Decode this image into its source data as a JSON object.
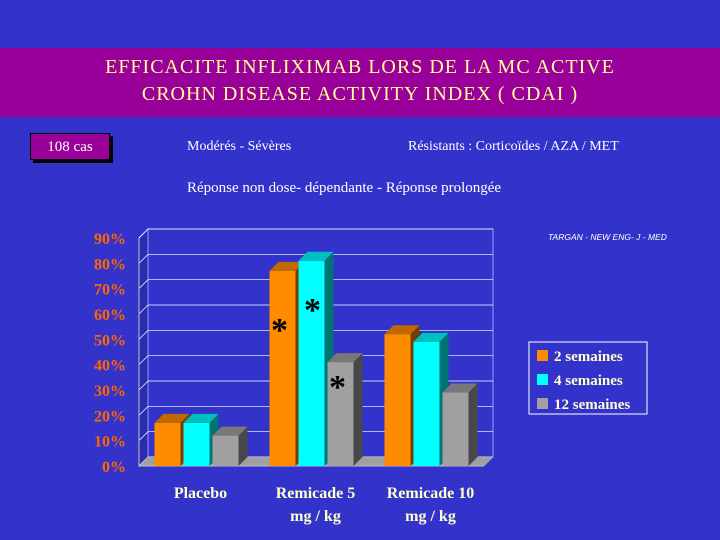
{
  "title": {
    "line1": "EFFICACITE INFLIXIMAB LORS DE LA MC ACTIVE",
    "line2": "CROHN DISEASE ACTIVITY INDEX ( CDAI )"
  },
  "cases_label": "108 cas",
  "info": {
    "severity": "Modérés - Sévères",
    "resistance": "Résistants : Corticoïdes / AZA / MET",
    "response": "Réponse non dose- dépendante - Réponse prolongée"
  },
  "reference": "TARGAN - NEW ENG- J - MED",
  "colors": {
    "background": "#3333cc",
    "title_band": "#990099",
    "title_text": "#ffff99",
    "chart_axis_text": "#ff6600",
    "category_text": "#ffffcc"
  },
  "chart_data": {
    "type": "bar",
    "categories": [
      "Placebo",
      "Remicade 5 mg / kg",
      "Remicade 10 mg / kg"
    ],
    "category_lines": [
      [
        "Placebo"
      ],
      [
        "Remicade 5",
        "mg / kg"
      ],
      [
        "Remicade 10",
        "mg / kg"
      ]
    ],
    "series": [
      {
        "name": "2 semaines",
        "color": "#ff8c00",
        "values": [
          17,
          77,
          52
        ]
      },
      {
        "name": "4 semaines",
        "color": "#00ffff",
        "values": [
          17,
          81,
          49
        ]
      },
      {
        "name": "12 semaines",
        "color": "#a0a0a0",
        "values": [
          12,
          41,
          29
        ]
      }
    ],
    "yticks": [
      "0%",
      "10%",
      "20%",
      "30%",
      "40%",
      "50%",
      "60%",
      "70%",
      "80%",
      "90%"
    ],
    "ylim": [
      0,
      90
    ],
    "grid": true,
    "legend_position": "right",
    "significance_marker": "*"
  }
}
